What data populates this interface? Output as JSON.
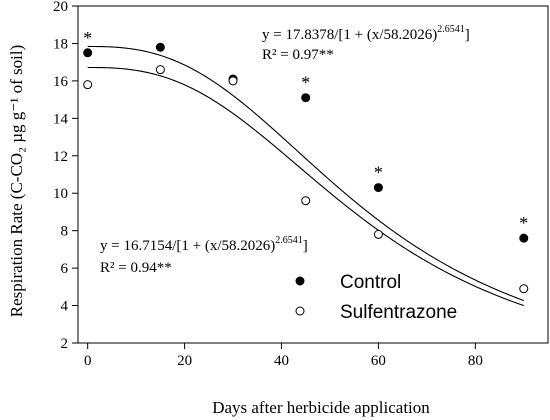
{
  "chart_data": {
    "type": "scatter",
    "xlabel": "Days after herbicide application",
    "ylabel": "Respiration Rate (C-CO₂ µg g⁻¹ of soil)",
    "xlim": [
      -2,
      95
    ],
    "ylim": [
      2,
      20
    ],
    "xticks": [
      0,
      20,
      40,
      60,
      80
    ],
    "yticks": [
      2,
      4,
      6,
      8,
      10,
      12,
      14,
      16,
      18,
      20
    ],
    "grid": false,
    "legend_position": "lower-right",
    "series": [
      {
        "name": "Control",
        "marker": "filled-circle",
        "x": [
          0,
          15,
          30,
          45,
          60,
          90
        ],
        "y": [
          17.5,
          17.8,
          16.1,
          15.1,
          10.3,
          7.6
        ],
        "fit": {
          "a": 17.8378,
          "x0": 58.2026,
          "b": 2.6541
        },
        "equation": {
          "main": "y = 17.8378/[1 + (x/58.2026)",
          "exponent": "2.6541",
          "tail": "]",
          "r2": "R² = 0.97**"
        }
      },
      {
        "name": "Sulfentrazone",
        "marker": "open-circle",
        "x": [
          0,
          15,
          30,
          45,
          60,
          90
        ],
        "y": [
          15.8,
          16.6,
          16.0,
          9.6,
          7.8,
          4.9
        ],
        "fit": {
          "a": 16.7154,
          "x0": 58.2026,
          "b": 2.6541
        },
        "equation": {
          "main": "y = 16.7154/[1 + (x/58.2026)",
          "exponent": "2.6541",
          "tail": "]",
          "r2": "R² = 0.94**"
        }
      }
    ],
    "significance": {
      "symbol": "*",
      "points": [
        {
          "x": 0,
          "y": 17.5
        },
        {
          "x": 45,
          "y": 15.1
        },
        {
          "x": 60,
          "y": 10.3
        },
        {
          "x": 90,
          "y": 7.6
        }
      ]
    }
  }
}
